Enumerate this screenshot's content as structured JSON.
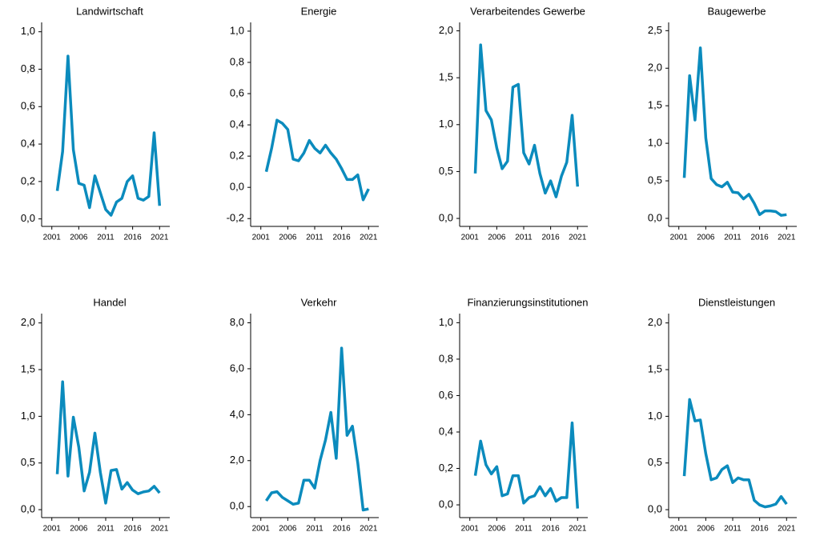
{
  "chart_data": [
    {
      "type": "line",
      "title": "Landwirtschaft",
      "color": "#0b8bbd",
      "x": [
        2002,
        2003,
        2004,
        2005,
        2006,
        2007,
        2008,
        2009,
        2010,
        2011,
        2012,
        2013,
        2014,
        2015,
        2016,
        2017,
        2018,
        2019,
        2020,
        2021
      ],
      "values": [
        0.15,
        0.36,
        0.87,
        0.37,
        0.19,
        0.18,
        0.06,
        0.23,
        0.14,
        0.05,
        0.02,
        0.09,
        0.11,
        0.2,
        0.23,
        0.11,
        0.1,
        0.12,
        0.46,
        0.07
      ],
      "xlim": [
        2000,
        2022
      ],
      "xticks": [
        2001,
        2006,
        2011,
        2016,
        2021
      ],
      "ylim": [
        -0.04,
        1.05
      ],
      "yticks": [
        {
          "value": 0,
          "label": "0,0"
        },
        {
          "value": 0.2,
          "label": "0,2"
        },
        {
          "value": 0.4,
          "label": "0,4"
        },
        {
          "value": 0.6,
          "label": "0,6"
        },
        {
          "value": 0.8,
          "label": "0,8"
        },
        {
          "value": 1.0,
          "label": "1,0"
        }
      ]
    },
    {
      "type": "line",
      "title": "Energie",
      "color": "#0b8bbd",
      "x": [
        2002,
        2003,
        2004,
        2005,
        2006,
        2007,
        2008,
        2009,
        2010,
        2011,
        2012,
        2013,
        2014,
        2015,
        2016,
        2017,
        2018,
        2019,
        2020,
        2021
      ],
      "values": [
        0.1,
        0.25,
        0.43,
        0.41,
        0.37,
        0.18,
        0.17,
        0.22,
        0.3,
        0.25,
        0.22,
        0.27,
        0.22,
        0.18,
        0.12,
        0.05,
        0.05,
        0.08,
        -0.08,
        -0.01
      ],
      "xlim": [
        2000,
        2022
      ],
      "xticks": [
        2001,
        2006,
        2011,
        2016,
        2021
      ],
      "ylim": [
        -0.25,
        1.056
      ],
      "yticks": [
        {
          "value": -0.2,
          "label": "-0,2"
        },
        {
          "value": 0,
          "label": "0,0"
        },
        {
          "value": 0.2,
          "label": "0,2"
        },
        {
          "value": 0.4,
          "label": "0,4"
        },
        {
          "value": 0.6,
          "label": "0,6"
        },
        {
          "value": 0.8,
          "label": "0,8"
        },
        {
          "value": 1.0,
          "label": "1,0"
        }
      ]
    },
    {
      "type": "line",
      "title": "Verarbeitendes Gewerbe",
      "color": "#0b8bbd",
      "x": [
        2002,
        2003,
        2004,
        2005,
        2006,
        2007,
        2008,
        2009,
        2010,
        2011,
        2012,
        2013,
        2014,
        2015,
        2016,
        2017,
        2018,
        2019,
        2020,
        2021
      ],
      "values": [
        0.48,
        1.85,
        1.15,
        1.05,
        0.75,
        0.53,
        0.61,
        1.4,
        1.43,
        0.7,
        0.58,
        0.78,
        0.48,
        0.27,
        0.4,
        0.23,
        0.45,
        0.6,
        1.1,
        0.34
      ],
      "xlim": [
        2000,
        2022
      ],
      "xticks": [
        2001,
        2006,
        2011,
        2016,
        2021
      ],
      "ylim": [
        -0.085,
        2.09
      ],
      "yticks": [
        {
          "value": 0,
          "label": "0,0"
        },
        {
          "value": 0.5,
          "label": "0,5"
        },
        {
          "value": 1.0,
          "label": "1,0"
        },
        {
          "value": 1.5,
          "label": "1,5"
        },
        {
          "value": 2.0,
          "label": "2,0"
        }
      ]
    },
    {
      "type": "line",
      "title": "Baugewerbe",
      "color": "#0b8bbd",
      "x": [
        2002,
        2003,
        2004,
        2005,
        2006,
        2007,
        2008,
        2009,
        2010,
        2011,
        2012,
        2013,
        2014,
        2015,
        2016,
        2017,
        2018,
        2019,
        2020,
        2021
      ],
      "values": [
        0.54,
        1.9,
        1.31,
        2.27,
        1.07,
        0.53,
        0.45,
        0.42,
        0.48,
        0.35,
        0.34,
        0.26,
        0.32,
        0.2,
        0.05,
        0.1,
        0.1,
        0.09,
        0.04,
        0.05
      ],
      "xlim": [
        2000,
        2022
      ],
      "xticks": [
        2001,
        2006,
        2011,
        2016,
        2021
      ],
      "ylim": [
        -0.107,
        2.61
      ],
      "yticks": [
        {
          "value": 0,
          "label": "0,0"
        },
        {
          "value": 0.5,
          "label": "0,5"
        },
        {
          "value": 1.0,
          "label": "1,0"
        },
        {
          "value": 1.5,
          "label": "1,5"
        },
        {
          "value": 2.0,
          "label": "2,0"
        },
        {
          "value": 2.5,
          "label": "2,5"
        }
      ]
    },
    {
      "type": "line",
      "title": "Handel",
      "color": "#0b8bbd",
      "x": [
        2002,
        2003,
        2004,
        2005,
        2006,
        2007,
        2008,
        2009,
        2010,
        2011,
        2012,
        2013,
        2014,
        2015,
        2016,
        2017,
        2018,
        2019,
        2020,
        2021
      ],
      "values": [
        0.38,
        1.37,
        0.36,
        0.99,
        0.67,
        0.2,
        0.4,
        0.82,
        0.4,
        0.07,
        0.42,
        0.43,
        0.22,
        0.29,
        0.21,
        0.17,
        0.19,
        0.2,
        0.25,
        0.18
      ],
      "xlim": [
        2000,
        2022
      ],
      "xticks": [
        2001,
        2006,
        2011,
        2016,
        2021
      ],
      "ylim": [
        -0.085,
        2.1
      ],
      "yticks": [
        {
          "value": 0,
          "label": "0,0"
        },
        {
          "value": 0.5,
          "label": "0,5"
        },
        {
          "value": 1.0,
          "label": "1,0"
        },
        {
          "value": 1.5,
          "label": "1,5"
        },
        {
          "value": 2.0,
          "label": "2,0"
        }
      ]
    },
    {
      "type": "line",
      "title": "Verkehr",
      "color": "#0b8bbd",
      "x": [
        2002,
        2003,
        2004,
        2005,
        2006,
        2007,
        2008,
        2009,
        2010,
        2011,
        2012,
        2013,
        2014,
        2015,
        2016,
        2017,
        2018,
        2019,
        2020,
        2021
      ],
      "values": [
        0.25,
        0.6,
        0.65,
        0.4,
        0.25,
        0.1,
        0.15,
        1.15,
        1.15,
        0.8,
        2.0,
        2.9,
        4.1,
        2.1,
        6.9,
        3.1,
        3.5,
        1.9,
        -0.15,
        -0.1
      ],
      "xlim": [
        2000,
        2022
      ],
      "xticks": [
        2001,
        2006,
        2011,
        2016,
        2021
      ],
      "ylim": [
        -0.48,
        8.4
      ],
      "yticks": [
        {
          "value": 0,
          "label": "0,0"
        },
        {
          "value": 2,
          "label": "2,0"
        },
        {
          "value": 4,
          "label": "4,0"
        },
        {
          "value": 6,
          "label": "6,0"
        },
        {
          "value": 8,
          "label": "8,0"
        }
      ]
    },
    {
      "type": "line",
      "title": "Finanzierungsinstitutionen",
      "color": "#0b8bbd",
      "x": [
        2002,
        2003,
        2004,
        2005,
        2006,
        2007,
        2008,
        2009,
        2010,
        2011,
        2012,
        2013,
        2014,
        2015,
        2016,
        2017,
        2018,
        2019,
        2020,
        2021
      ],
      "values": [
        0.16,
        0.35,
        0.22,
        0.17,
        0.21,
        0.05,
        0.06,
        0.16,
        0.16,
        0.01,
        0.04,
        0.05,
        0.1,
        0.05,
        0.09,
        0.02,
        0.04,
        0.04,
        0.45,
        -0.02
      ],
      "xlim": [
        2000,
        2022
      ],
      "xticks": [
        2001,
        2006,
        2011,
        2016,
        2021
      ],
      "ylim": [
        -0.07,
        1.05
      ],
      "yticks": [
        {
          "value": 0,
          "label": "0,0"
        },
        {
          "value": 0.2,
          "label": "0,2"
        },
        {
          "value": 0.4,
          "label": "0,4"
        },
        {
          "value": 0.6,
          "label": "0,6"
        },
        {
          "value": 0.8,
          "label": "0,8"
        },
        {
          "value": 1.0,
          "label": "1,0"
        }
      ]
    },
    {
      "type": "line",
      "title": "Dienstleistungen",
      "color": "#0b8bbd",
      "x": [
        2002,
        2003,
        2004,
        2005,
        2006,
        2007,
        2008,
        2009,
        2010,
        2011,
        2012,
        2013,
        2014,
        2015,
        2016,
        2017,
        2018,
        2019,
        2020,
        2021
      ],
      "values": [
        0.36,
        1.18,
        0.95,
        0.96,
        0.6,
        0.32,
        0.34,
        0.43,
        0.47,
        0.29,
        0.34,
        0.32,
        0.32,
        0.1,
        0.05,
        0.03,
        0.04,
        0.06,
        0.14,
        0.06
      ],
      "xlim": [
        2000,
        2022
      ],
      "xticks": [
        2001,
        2006,
        2011,
        2016,
        2021
      ],
      "ylim": [
        -0.085,
        2.1
      ],
      "yticks": [
        {
          "value": 0,
          "label": "0,0"
        },
        {
          "value": 0.5,
          "label": "0,5"
        },
        {
          "value": 1.0,
          "label": "1,0"
        },
        {
          "value": 1.5,
          "label": "1,5"
        },
        {
          "value": 2.0,
          "label": "2,0"
        }
      ]
    }
  ]
}
